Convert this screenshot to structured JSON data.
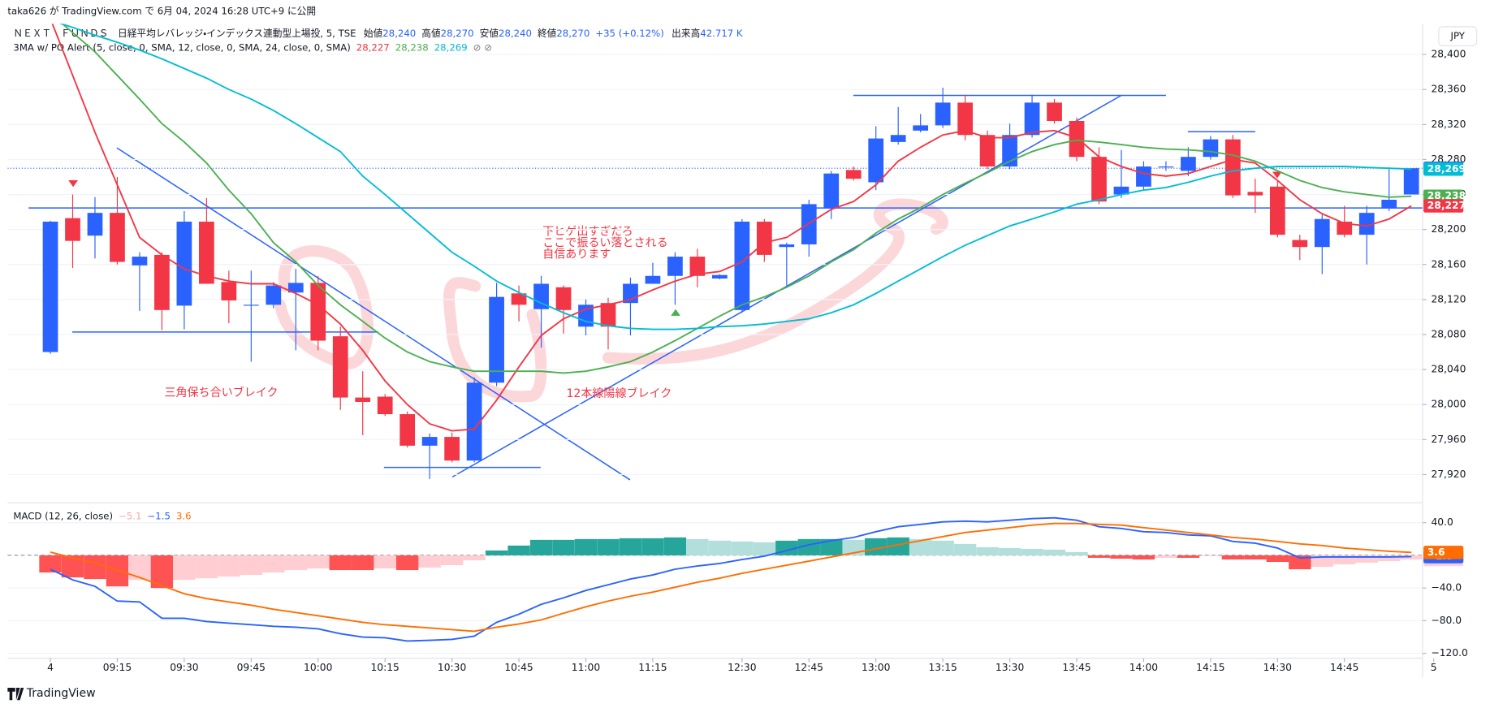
{
  "header": {
    "publish": "taka626 が TradingView.com で 6月 04, 2024 16:28 UTC+9 に公開",
    "symbol": "ＮＥＸＴ　ＦＵＮＤＳ　日経平均レバレッジ・インデックス連動型上場投, 5, TSE",
    "open_label": "始値",
    "open": "28,240",
    "high_label": "高値",
    "high": "28,270",
    "low_label": "安値",
    "low": "28,240",
    "close_label": "終値",
    "close": "28,270",
    "change": "+35 (+0.12%)",
    "volume_label": "出来高",
    "volume": "42.717 K",
    "indicator": "3MA w/ PO Alert (5, close, 0, SMA, 12, close, 0, SMA, 24, close, 0, SMA)"
  },
  "annotations": [
    "下ヒゲ出すぎだろ",
    "ここで振るい落とされる",
    "自信あります",
    "三角保ち合いブレイク",
    "12本線陽線ブレイク"
  ],
  "footer": "TradingView",
  "chart_data": [
    {
      "type": "candlestick",
      "currency": "JPY",
      "up_color": "#2962ff",
      "down_color": "#f23645",
      "open": [
        28060,
        28213,
        28193,
        28219,
        28159,
        28171,
        28113,
        28209,
        28140,
        28114,
        28114,
        28128,
        28139,
        28078,
        28008,
        28009,
        27989,
        27953,
        27963,
        27936,
        28025,
        28127,
        28109,
        28134,
        28089,
        28116,
        28116,
        28138,
        28147,
        28169,
        28144,
        28108,
        28209,
        28180,
        28183,
        28224,
        28268,
        28254,
        28300,
        28313,
        28319,
        28345,
        28308,
        28272,
        28308,
        28345,
        28324,
        28283,
        28240,
        28249,
        28272,
        28267,
        28283,
        28303,
        28243,
        28249,
        28188,
        28180,
        28209,
        28194,
        28224,
        28240
      ],
      "high": [
        28210,
        28240,
        28237,
        28260,
        28174,
        28174,
        28221,
        28236,
        28153,
        28153,
        28140,
        28155,
        28147,
        28089,
        28038,
        28012,
        27992,
        27967,
        27968,
        28031,
        28139,
        28136,
        28147,
        28136,
        28120,
        28122,
        28145,
        28162,
        28174,
        28178,
        28149,
        28212,
        28212,
        28185,
        28234,
        28267,
        28272,
        28318,
        28340,
        28332,
        28362,
        28354,
        28313,
        28321,
        28354,
        28349,
        28328,
        28294,
        28291,
        28278,
        28278,
        28294,
        28307,
        28308,
        28258,
        28256,
        28194,
        28217,
        28227,
        28227,
        28271,
        28270
      ],
      "low": [
        28058,
        28156,
        28167,
        28160,
        28107,
        28085,
        28086,
        28138,
        28093,
        28049,
        28110,
        28062,
        28062,
        27994,
        27965,
        27987,
        27951,
        27915,
        27934,
        27934,
        28021,
        28095,
        28065,
        28081,
        28079,
        28063,
        28079,
        28138,
        28114,
        28134,
        28143,
        28105,
        28163,
        28136,
        28169,
        28212,
        28256,
        28245,
        28297,
        28311,
        28316,
        28302,
        28269,
        28269,
        28305,
        28321,
        28278,
        28229,
        28236,
        28245,
        28267,
        28261,
        28280,
        28236,
        28219,
        28191,
        28165,
        28149,
        28191,
        28160,
        28221,
        28240
      ],
      "close": [
        28209,
        28187,
        28219,
        28163,
        28169,
        28108,
        28209,
        28138,
        28119,
        28114,
        28136,
        28139,
        28073,
        28008,
        28003,
        27989,
        27953,
        27963,
        27936,
        28025,
        28123,
        28114,
        28138,
        28108,
        28114,
        28089,
        28138,
        28147,
        28169,
        28147,
        28148,
        28209,
        28171,
        28183,
        28229,
        28264,
        28258,
        28304,
        28308,
        28319,
        28345,
        28308,
        28272,
        28308,
        28345,
        28324,
        28283,
        28232,
        28249,
        28272,
        28272,
        28283,
        28303,
        28239,
        28239,
        28194,
        28180,
        28212,
        28194,
        28219,
        28234,
        28270
      ],
      "series": [
        {
          "color": "#f23645",
          "values": [
            28441,
            28376,
            28311,
            28251,
            28191,
            28171,
            28155,
            28147,
            28141,
            28138,
            28138,
            28127,
            28114,
            28092,
            28062,
            28027,
            28000,
            27978,
            27970,
            27972,
            28005,
            28043,
            28079,
            28098,
            28109,
            28114,
            28120,
            28131,
            28141,
            28149,
            28152,
            28163,
            28185,
            28191,
            28207,
            28223,
            28232,
            28251,
            28278,
            28294,
            28308,
            28313,
            28305,
            28305,
            28311,
            28313,
            28305,
            28283,
            28272,
            28264,
            28261,
            28264,
            28272,
            28280,
            28276,
            28256,
            28234,
            28218,
            28207,
            28204,
            28212,
            28227
          ]
        },
        {
          "color": "#4caf50",
          "values": [
            28447,
            28425,
            28403,
            28376,
            28349,
            28321,
            28300,
            28276,
            28245,
            28218,
            28185,
            28163,
            28136,
            28114,
            28095,
            28076,
            28060,
            28049,
            28043,
            28038,
            28038,
            28038,
            28038,
            28036,
            28038,
            28043,
            28049,
            28060,
            28073,
            28087,
            28101,
            28114,
            28123,
            28134,
            28147,
            28163,
            28177,
            28196,
            28212,
            28225,
            28240,
            28253,
            28265,
            28278,
            28289,
            28297,
            28302,
            28300,
            28297,
            28294,
            28292,
            28291,
            28289,
            28285,
            28278,
            28267,
            28256,
            28248,
            28243,
            28240,
            28237,
            28238
          ]
        },
        {
          "color": "#00bcd4",
          "values": [
            28439,
            28431,
            28422,
            28414,
            28405,
            28395,
            28384,
            28373,
            28360,
            28349,
            28336,
            28321,
            28305,
            28289,
            28261,
            28240,
            28218,
            28196,
            28174,
            28158,
            28141,
            28128,
            28116,
            28105,
            28095,
            28090,
            28087,
            28086,
            28086,
            28087,
            28089,
            28090,
            28092,
            28095,
            28098,
            28105,
            28114,
            28127,
            28141,
            28155,
            28169,
            28182,
            28193,
            28204,
            28212,
            28220,
            28229,
            28234,
            28240,
            28245,
            28248,
            28254,
            28261,
            28267,
            28270,
            28272,
            28272,
            28272,
            28272,
            28271,
            28270,
            28269
          ]
        }
      ],
      "price_tags": [
        {
          "value": 28270,
          "label": "28,270",
          "color": "#2962ff"
        },
        {
          "value": 28269,
          "label": "28,269",
          "color": "#00bcd4"
        },
        {
          "value": 28238,
          "label": "28,238",
          "color": "#4caf50"
        },
        {
          "value": 28227,
          "label": "28,227",
          "color": "#f23645"
        }
      ],
      "ylim": [
        27890,
        28435
      ],
      "yticks": [
        {
          "value": 27920,
          "label": "27,920"
        },
        {
          "value": 27960,
          "label": "27,960"
        },
        {
          "value": 28000,
          "label": "28,000"
        },
        {
          "value": 28040,
          "label": "28,040"
        },
        {
          "value": 28080,
          "label": "28,080"
        },
        {
          "value": 28120,
          "label": "28,120"
        },
        {
          "value": 28160,
          "label": "28,160"
        },
        {
          "value": 28200,
          "label": "28,200"
        },
        {
          "value": 28240,
          "label": "28,240"
        },
        {
          "value": 28280,
          "label": "28,280"
        },
        {
          "value": 28320,
          "label": "28,320"
        },
        {
          "value": 28360,
          "label": "28,360"
        },
        {
          "value": 28400,
          "label": "28,400"
        }
      ],
      "xticks": [
        {
          "value": 0,
          "label": "4"
        },
        {
          "value": 3,
          "label": "09:15"
        },
        {
          "value": 6,
          "label": "09:30"
        },
        {
          "value": 9,
          "label": "09:45"
        },
        {
          "value": 12,
          "label": "10:00"
        },
        {
          "value": 15,
          "label": "10:15"
        },
        {
          "value": 18,
          "label": "10:30"
        },
        {
          "value": 21,
          "label": "10:45"
        },
        {
          "value": 24,
          "label": "11:00"
        },
        {
          "value": 27,
          "label": "11:15"
        },
        {
          "value": 31,
          "label": "12:30"
        },
        {
          "value": 34,
          "label": "12:45"
        },
        {
          "value": 37,
          "label": "13:00"
        },
        {
          "value": 40,
          "label": "13:15"
        },
        {
          "value": 43,
          "label": "13:30"
        },
        {
          "value": 46,
          "label": "13:45"
        },
        {
          "value": 49,
          "label": "14:00"
        },
        {
          "value": 52,
          "label": "14:15"
        },
        {
          "value": 55,
          "label": "14:30"
        },
        {
          "value": 58,
          "label": "14:45"
        },
        {
          "value": 62,
          "label": "5"
        }
      ]
    },
    {
      "type": "macd",
      "title": "MACD (12, 26, close)",
      "histogram": [
        -21,
        -27,
        -29,
        -38,
        -30,
        -40,
        -30,
        -28,
        -26,
        -24,
        -21,
        -18,
        -16,
        -18,
        -18,
        -16,
        -18,
        -15,
        -12,
        -6,
        6,
        12,
        19,
        19,
        20,
        20,
        21,
        21,
        22,
        20,
        18,
        17,
        16,
        18,
        20,
        20,
        19,
        21,
        22,
        20,
        18,
        14,
        10,
        9,
        8,
        7,
        4,
        -3,
        -4,
        -5,
        -3,
        -3,
        -1,
        -5,
        -5,
        -8,
        -17,
        -14,
        -11,
        -9,
        -7,
        -5.1
      ],
      "series": [
        {
          "color": "#2962ff",
          "values": [
            -17,
            -30,
            -38,
            -56,
            -57,
            -77,
            -77,
            -81,
            -83,
            -85,
            -87,
            -88,
            -90,
            -96,
            -100,
            -101,
            -105,
            -104,
            -103,
            -99,
            -82,
            -72,
            -60,
            -52,
            -43,
            -36,
            -29,
            -24,
            -17,
            -13,
            -10,
            -5,
            -1,
            6,
            13,
            18,
            22,
            29,
            35,
            38,
            41,
            42,
            41,
            43,
            45,
            46,
            43,
            35,
            33,
            29,
            28,
            25,
            24,
            17,
            15,
            9,
            -3,
            -2,
            -2,
            -2,
            -2,
            -1.5
          ]
        },
        {
          "color": "#ff6d00",
          "values": [
            4,
            -3,
            -9,
            -18,
            -27,
            -37,
            -47,
            -53,
            -57,
            -61,
            -66,
            -70,
            -74,
            -78,
            -82,
            -85,
            -87,
            -89,
            -91,
            -93,
            -88,
            -84,
            -79,
            -71,
            -63,
            -56,
            -50,
            -45,
            -39,
            -33,
            -28,
            -22,
            -17,
            -12,
            -7,
            -2,
            3,
            8,
            13,
            18,
            23,
            28,
            31,
            34,
            37,
            39,
            39,
            38,
            37,
            34,
            31,
            28,
            25,
            22,
            20,
            17,
            14,
            12,
            9,
            7,
            5,
            3.6
          ]
        }
      ],
      "value_tags": [
        {
          "value": -5.1,
          "label": "−5.1",
          "color": "#ffcdd2"
        },
        {
          "value": -1.5,
          "label": "−1.5",
          "color": "#2962ff"
        },
        {
          "value": 3.6,
          "label": "3.6",
          "color": "#ff6d00"
        }
      ],
      "ylim": [
        -126,
        61
      ],
      "yticks": [
        {
          "value": 40,
          "label": "40.0"
        },
        {
          "value": -40,
          "label": "−40.0"
        },
        {
          "value": -80,
          "label": "−80.0"
        },
        {
          "value": -120,
          "label": "−120.0"
        }
      ]
    }
  ]
}
